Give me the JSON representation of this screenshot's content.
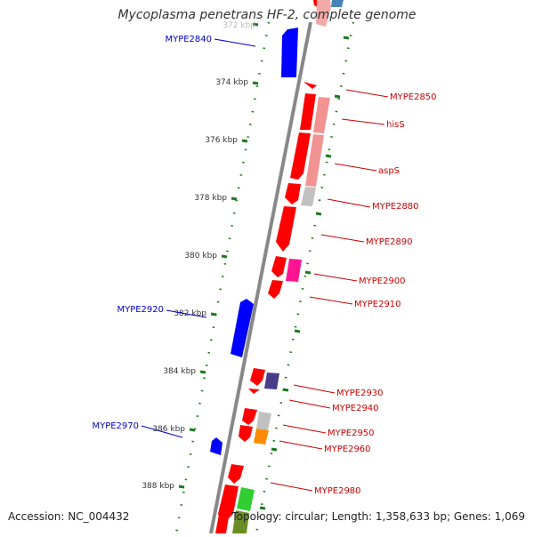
{
  "title": "Mycoplasma penetrans HF-2, complete genome",
  "footer": {
    "accession": "Accession: NC_004432",
    "summary": "Topology: circular; Length: 1,358,633 bp; Genes: 1,069"
  },
  "colors": {
    "background": "#ffffff",
    "backbone": "#888888",
    "tick": "#1a7a1a",
    "reverse_label": "#0000cc",
    "forward_label": "#cc0000",
    "forward_gene": "#ff0000",
    "reverse_gene": "#0000ff"
  },
  "scale_ticks": [
    {
      "label": "372 kbp",
      "kbp": 372
    },
    {
      "label": "374 kbp",
      "kbp": 374
    },
    {
      "label": "376 kbp",
      "kbp": 376
    },
    {
      "label": "378 kbp",
      "kbp": 378
    },
    {
      "label": "380 kbp",
      "kbp": 380
    },
    {
      "label": "382 kbp",
      "kbp": 382
    },
    {
      "label": "384 kbp",
      "kbp": 384
    },
    {
      "label": "386 kbp",
      "kbp": 386
    },
    {
      "label": "388 kbp",
      "kbp": 388
    }
  ],
  "genes_reverse": [
    {
      "label": "MYPE2840",
      "color": "#0000ff"
    },
    {
      "label": "MYPE2920",
      "color": "#0000ff"
    },
    {
      "label": "MYPE2970",
      "color": "#0000ff"
    }
  ],
  "genes_forward": [
    {
      "label": "MYPE2850",
      "color": "#ff0000"
    },
    {
      "label": "hisS",
      "color": "#ff0000"
    },
    {
      "label": "aspS",
      "color": "#ff0000"
    },
    {
      "label": "MYPE2880",
      "color": "#ff0000"
    },
    {
      "label": "MYPE2890",
      "color": "#ff0000"
    },
    {
      "label": "MYPE2900",
      "color": "#ff0000"
    },
    {
      "label": "MYPE2910",
      "color": "#ff0000"
    },
    {
      "label": "MYPE2930",
      "color": "#ff0000"
    },
    {
      "label": "MYPE2940",
      "color": "#ff0000"
    },
    {
      "label": "MYPE2950",
      "color": "#ff0000"
    },
    {
      "label": "MYPE2960",
      "color": "#ff0000"
    },
    {
      "label": "MYPE2980",
      "color": "#ff0000"
    }
  ],
  "cog_colors": [
    "#f08080",
    "#c0c0c0",
    "#ff1493",
    "#483d8b",
    "#ff8c00",
    "#32cd32",
    "#4682b4"
  ]
}
